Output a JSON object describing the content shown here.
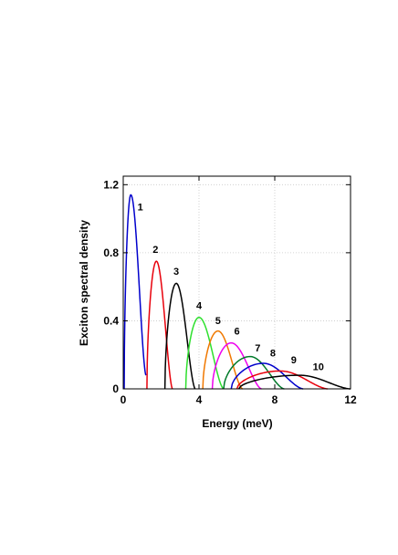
{
  "chart_data": {
    "type": "line",
    "xlabel": "Energy (meV)",
    "ylabel": "Exciton spectral density",
    "xlim": [
      0,
      12
    ],
    "ylim": [
      0,
      1.25
    ],
    "xticks": [
      "0",
      "4",
      "8",
      "12"
    ],
    "yticks": [
      "0",
      "0.4",
      "0.8",
      "1.2"
    ],
    "grid": true,
    "series": [
      {
        "name": "1",
        "color": "#0000cc",
        "onset": 0.05,
        "peak_x": 0.4,
        "peak_y": 1.14,
        "end_x": 1.2,
        "end_y": 0.08
      },
      {
        "name": "2",
        "color": "#e8000b",
        "onset": 1.25,
        "peak_x": 1.75,
        "peak_y": 0.75,
        "end_x": 2.6,
        "end_y": 0.0
      },
      {
        "name": "3",
        "color": "#000000",
        "onset": 2.2,
        "peak_x": 2.8,
        "peak_y": 0.62,
        "end_x": 3.8,
        "end_y": 0.0
      },
      {
        "name": "4",
        "color": "#2ee02e",
        "onset": 3.3,
        "peak_x": 4.0,
        "peak_y": 0.42,
        "end_x": 5.3,
        "end_y": 0.0
      },
      {
        "name": "5",
        "color": "#f07800",
        "onset": 4.2,
        "peak_x": 5.0,
        "peak_y": 0.34,
        "end_x": 6.3,
        "end_y": 0.0
      },
      {
        "name": "6",
        "color": "#ee00ee",
        "onset": 4.7,
        "peak_x": 5.7,
        "peak_y": 0.27,
        "end_x": 7.3,
        "end_y": 0.0
      },
      {
        "name": "7",
        "color": "#007a2a",
        "onset": 5.3,
        "peak_x": 6.7,
        "peak_y": 0.19,
        "end_x": 8.5,
        "end_y": 0.0
      },
      {
        "name": "8",
        "color": "#0000cc",
        "onset": 5.7,
        "peak_x": 7.4,
        "peak_y": 0.15,
        "end_x": 9.5,
        "end_y": 0.0
      },
      {
        "name": "9",
        "color": "#e8000b",
        "onset": 6.0,
        "peak_x": 8.3,
        "peak_y": 0.105,
        "end_x": 10.8,
        "end_y": 0.0
      },
      {
        "name": "10",
        "color": "#000000",
        "onset": 6.1,
        "peak_x": 9.3,
        "peak_y": 0.08,
        "end_x": 12.0,
        "end_y": 0.0
      }
    ],
    "curve_labels": [
      {
        "text": "1",
        "x": 0.9,
        "y": 1.05
      },
      {
        "text": "2",
        "x": 1.7,
        "y": 0.8
      },
      {
        "text": "3",
        "x": 2.8,
        "y": 0.67
      },
      {
        "text": "4",
        "x": 4.0,
        "y": 0.47
      },
      {
        "text": "5",
        "x": 5.0,
        "y": 0.38
      },
      {
        "text": "6",
        "x": 6.0,
        "y": 0.32
      },
      {
        "text": "7",
        "x": 7.1,
        "y": 0.22
      },
      {
        "text": "8",
        "x": 7.9,
        "y": 0.19
      },
      {
        "text": "9",
        "x": 9.0,
        "y": 0.15
      },
      {
        "text": "10",
        "x": 10.3,
        "y": 0.11
      }
    ]
  }
}
